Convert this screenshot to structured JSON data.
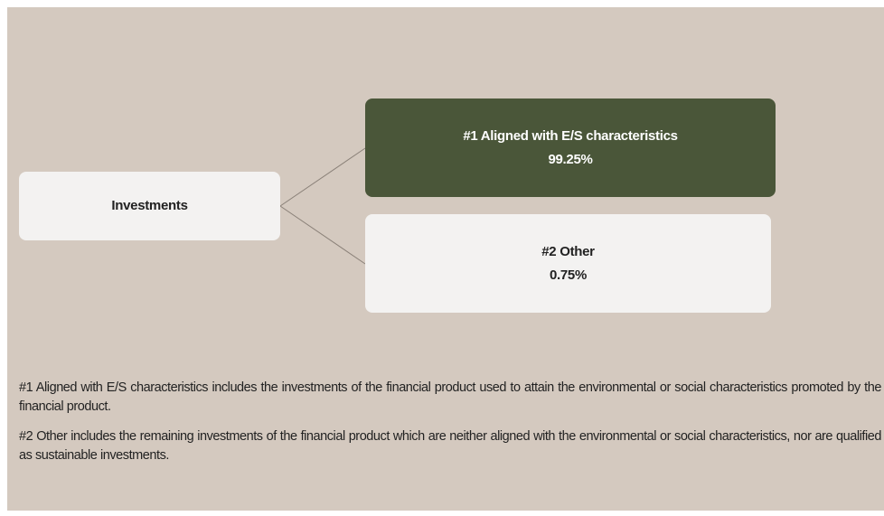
{
  "nodes": [
    {
      "label": "Investments"
    },
    {
      "label": "#1 Aligned with E/S characteristics",
      "value": "99.25%"
    },
    {
      "label": "#2 Other",
      "value": "0.75%"
    }
  ],
  "notes": [
    "#1 Aligned with E/S characteristics includes the investments of the financial product used to attain the environmental or social characteristics promoted by the financial product.",
    "#2 Other includes the remaining investments of the financial product which are neither aligned with the environmental or social characteristics, nor are qualified as sustainable investments."
  ]
}
